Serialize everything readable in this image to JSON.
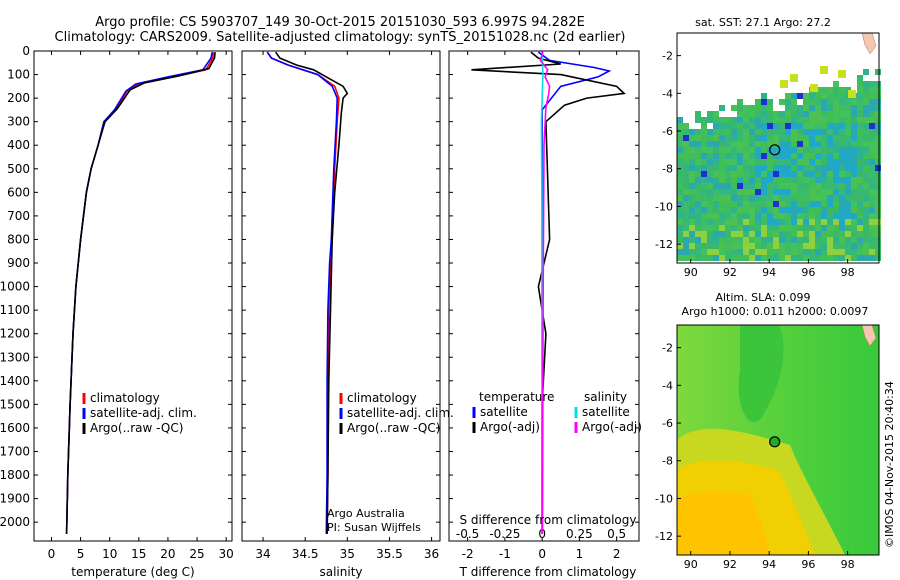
{
  "header": {
    "line1": "Argo profile: CS 5903707_149 30-Oct-2015 20151030_593 6.997S 94.282E",
    "line2": "Climatology: CARS2009. Satellite-adjusted climatology: synTS_20151028.nc (2d earlier)"
  },
  "colors": {
    "climatology": "#ff0000",
    "satellite": "#0000ff",
    "argo": "#000000",
    "argo_adj": "#ff00ff",
    "salinity_sat": "#00e0e0"
  },
  "chart_data": [
    {
      "id": "temperature",
      "type": "line",
      "xlabel": "temperature (deg C)",
      "ylabel": "",
      "xlim": [
        -3,
        31
      ],
      "ylim": [
        2080,
        0
      ],
      "xticks": [
        0,
        5,
        10,
        15,
        20,
        25,
        30
      ],
      "yticks": [
        0,
        100,
        200,
        300,
        400,
        500,
        600,
        700,
        800,
        900,
        1000,
        1100,
        1200,
        1300,
        1400,
        1500,
        1600,
        1700,
        1800,
        1900,
        2000
      ],
      "legend": [
        "climatology",
        "satellite-adj. clim.",
        "Argo(..raw -QC)"
      ],
      "legend_placement": "lower-middle",
      "series": [
        {
          "name": "climatology",
          "color": "#ff0000",
          "x": [
            27.8,
            27.7,
            26.5,
            21,
            15,
            13,
            11,
            9,
            8,
            6.8,
            6,
            5,
            4.2,
            3.7,
            3.2,
            2.8,
            2.6
          ],
          "y": [
            5,
            30,
            80,
            110,
            140,
            170,
            250,
            300,
            400,
            500,
            600,
            800,
            1000,
            1200,
            1500,
            1800,
            2050
          ]
        },
        {
          "name": "satellite-adj. clim.",
          "color": "#0000ff",
          "x": [
            27.6,
            27.4,
            26,
            20,
            14.5,
            12.8,
            10.8,
            9,
            8,
            6.8,
            6,
            5,
            4.2,
            3.7,
            3.2,
            2.8,
            2.6
          ],
          "y": [
            5,
            30,
            80,
            110,
            140,
            170,
            250,
            300,
            400,
            500,
            600,
            800,
            1000,
            1200,
            1500,
            1800,
            2050
          ]
        },
        {
          "name": "Argo(..raw -QC)",
          "color": "#000000",
          "x": [
            28.1,
            28.0,
            27,
            22,
            16,
            13.5,
            11.3,
            9.2,
            8,
            6.8,
            6,
            5,
            4.2,
            3.7,
            3.2,
            2.8,
            2.6
          ],
          "y": [
            5,
            30,
            75,
            105,
            135,
            165,
            245,
            300,
            400,
            500,
            600,
            800,
            1000,
            1200,
            1500,
            1800,
            2050
          ]
        }
      ]
    },
    {
      "id": "salinity",
      "type": "line",
      "xlabel": "salinity",
      "ylabel": "",
      "xlim": [
        33.75,
        36.1
      ],
      "ylim": [
        2080,
        0
      ],
      "xticks": [
        34,
        34.5,
        35,
        35.5,
        36
      ],
      "xticklabels": [
        "34",
        "34.5",
        "35",
        "35.5",
        "36"
      ],
      "legend": [
        "climatology",
        "satellite-adj. clim.",
        "Argo(..raw -QC)"
      ],
      "legend_placement": "lower-right",
      "note1": "Argo Australia",
      "note2": "PI: Susan Wijffels",
      "series": [
        {
          "name": "climatology",
          "color": "#ff0000",
          "x": [
            34.05,
            34.1,
            34.3,
            34.65,
            34.85,
            34.9,
            34.88,
            34.85,
            34.82,
            34.8,
            34.78,
            34.77,
            34.77,
            34.76
          ],
          "y": [
            5,
            30,
            60,
            100,
            150,
            200,
            300,
            500,
            800,
            900,
            1100,
            1400,
            1800,
            2050
          ]
        },
        {
          "name": "satellite-adj. clim.",
          "color": "#0000ff",
          "x": [
            34.05,
            34.1,
            34.3,
            34.65,
            34.82,
            34.88,
            34.87,
            34.84,
            34.81,
            34.79,
            34.77,
            34.76,
            34.76,
            34.75
          ],
          "y": [
            5,
            30,
            60,
            100,
            150,
            200,
            300,
            500,
            800,
            900,
            1100,
            1400,
            1800,
            2050
          ]
        },
        {
          "name": "Argo(..raw -QC)",
          "color": "#000000",
          "x": [
            34.15,
            34.2,
            34.4,
            34.6,
            34.75,
            34.95,
            35.0,
            34.95,
            34.93,
            34.9,
            34.85,
            34.82,
            34.8,
            34.78,
            34.77,
            34.76
          ],
          "y": [
            5,
            30,
            60,
            80,
            110,
            150,
            180,
            200,
            260,
            400,
            600,
            800,
            1100,
            1400,
            1800,
            2050
          ]
        }
      ]
    },
    {
      "id": "difference",
      "type": "line",
      "xlabel": "T difference from climatology",
      "top_label": "S difference from climatology",
      "xlim": [
        -2.5,
        2.6
      ],
      "ylim": [
        2080,
        0
      ],
      "xticks": [
        -2,
        -1,
        0,
        1,
        2
      ],
      "xticklabels": [
        "-2",
        "-1",
        "0",
        "1",
        "2"
      ],
      "s_ticks": [
        -0.5,
        -0.25,
        0,
        0.25,
        0.5
      ],
      "s_ticklabels": [
        "-0.5",
        "-0.25",
        "0",
        "0.25",
        "0.5"
      ],
      "legend_temperature_title": "temperature",
      "legend_salinity_title": "salinity",
      "legend_temperature": [
        "satellite",
        "Argo(-adj)"
      ],
      "legend_salinity": [
        "satellite",
        "Argo(-adj)"
      ],
      "series": [
        {
          "name": "temperature satellite",
          "color": "#0000ff",
          "x": [
            -0.1,
            0.2,
            1.4,
            1.8,
            1.5,
            0.5,
            0,
            0,
            0
          ],
          "y": [
            5,
            40,
            70,
            85,
            110,
            150,
            250,
            800,
            2050
          ]
        },
        {
          "name": "temperature Argo(-adj)",
          "color": "#000000",
          "x": [
            -0.3,
            -0.1,
            0.5,
            -1.9,
            0.5,
            2.0,
            2.2,
            1.2,
            0.6,
            0.1,
            0.2,
            -0.1,
            0.1,
            0,
            0
          ],
          "y": [
            5,
            30,
            55,
            80,
            100,
            150,
            180,
            200,
            230,
            300,
            800,
            1000,
            1200,
            1500,
            2050
          ]
        },
        {
          "name": "salinity satellite",
          "color": "#00e0e0",
          "x": [
            0,
            0.02,
            -0.02,
            0,
            0
          ],
          "y": [
            5,
            100,
            300,
            800,
            2050
          ]
        },
        {
          "name": "salinity Argo(-adj)",
          "color": "#ff00ff",
          "x": [
            0.02,
            -0.05,
            0.15,
            0.08,
            0.2,
            0.18,
            0.1,
            0.05,
            0.04,
            0.03,
            0.02,
            0.01
          ],
          "y": [
            5,
            40,
            80,
            110,
            150,
            180,
            240,
            400,
            700,
            900,
            1300,
            2050
          ]
        }
      ]
    },
    {
      "id": "sst-map",
      "type": "heatmap",
      "title": "sat. SST: 27.1  Argo: 27.2",
      "xticks": [
        90,
        92,
        94,
        96,
        98
      ],
      "yticks": [
        -2,
        -4,
        -6,
        -8,
        -10,
        -12
      ],
      "xlim": [
        89.3,
        99.6
      ],
      "ylim": [
        -13,
        -0.8
      ],
      "argo_position": {
        "lon": 94.282,
        "lat": -6.997
      }
    },
    {
      "id": "sla-map",
      "type": "heatmap",
      "title_line1": "Altim. SLA: 0.099",
      "title_line2": "Argo h1000: 0.011  h2000: 0.0097",
      "xticks": [
        90,
        92,
        94,
        96,
        98
      ],
      "yticks": [
        -2,
        -4,
        -6,
        -8,
        -10,
        -12
      ],
      "xlim": [
        89.3,
        99.6
      ],
      "ylim": [
        -13,
        -0.8
      ],
      "argo_position": {
        "lon": 94.282,
        "lat": -6.997
      }
    }
  ],
  "footer": {
    "credit": "©IMOS 04-Nov-2015 20:40:34"
  }
}
